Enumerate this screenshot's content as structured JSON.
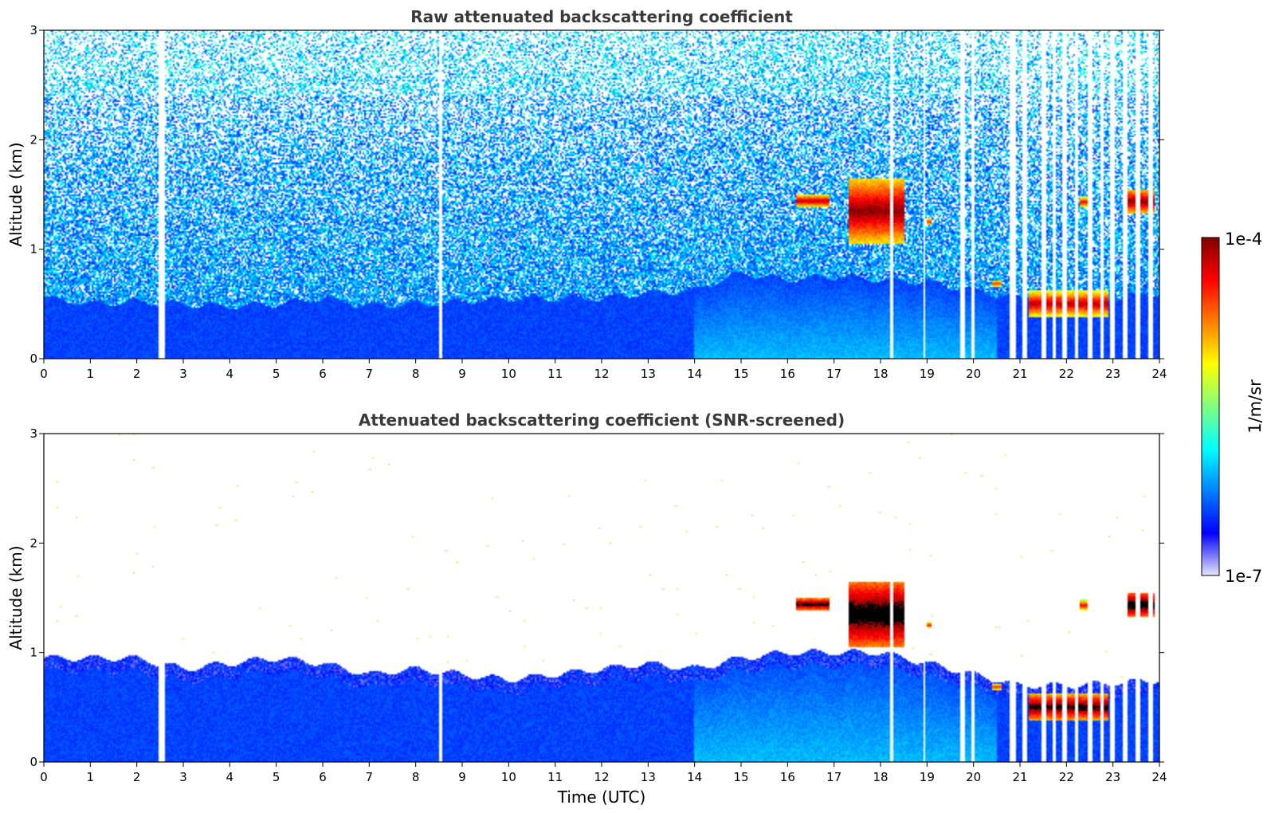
{
  "chart_data": [
    {
      "type": "heatmap",
      "title": "Raw attenuated backscattering coefficient",
      "xlabel": "",
      "ylabel": "Altitude (km)",
      "xlim": [
        0,
        24
      ],
      "ylim": [
        0,
        3
      ],
      "x_ticks": [
        "0",
        "1",
        "2",
        "3",
        "4",
        "5",
        "6",
        "7",
        "8",
        "9",
        "10",
        "11",
        "12",
        "13",
        "14",
        "15",
        "16",
        "17",
        "18",
        "19",
        "20",
        "21",
        "22",
        "23",
        "24"
      ],
      "y_ticks": [
        "0",
        "1",
        "2",
        "3"
      ],
      "grid": false,
      "screened": false,
      "boundary_layer_top_km": [
        [
          0,
          0.55
        ],
        [
          1,
          0.5
        ],
        [
          2,
          0.52
        ],
        [
          3,
          0.5
        ],
        [
          4,
          0.48
        ],
        [
          5,
          0.5
        ],
        [
          6,
          0.55
        ],
        [
          7,
          0.48
        ],
        [
          8,
          0.5
        ],
        [
          9,
          0.52
        ],
        [
          10,
          0.55
        ],
        [
          11,
          0.55
        ],
        [
          12,
          0.55
        ],
        [
          13,
          0.6
        ],
        [
          14,
          0.62
        ],
        [
          15,
          0.78
        ],
        [
          16,
          0.72
        ],
        [
          17,
          0.75
        ],
        [
          18,
          0.72
        ],
        [
          19,
          0.7
        ],
        [
          20,
          0.62
        ],
        [
          21,
          0.55
        ],
        [
          22,
          0.45
        ],
        [
          23,
          0.55
        ],
        [
          24,
          0.6
        ]
      ],
      "cloud_features": [
        {
          "t_start": 16.2,
          "t_end": 16.9,
          "alt_low_km": 1.38,
          "alt_high_km": 1.5,
          "level": 0.95
        },
        {
          "t_start": 17.3,
          "t_end": 18.5,
          "alt_low_km": 1.05,
          "alt_high_km": 1.65,
          "level": 1.0
        },
        {
          "t_start": 19.0,
          "t_end": 19.1,
          "alt_low_km": 1.22,
          "alt_high_km": 1.28,
          "level": 0.9
        },
        {
          "t_start": 20.4,
          "t_end": 20.6,
          "alt_low_km": 0.65,
          "alt_high_km": 0.72,
          "level": 0.85
        },
        {
          "t_start": 21.2,
          "t_end": 22.9,
          "alt_low_km": 0.38,
          "alt_high_km": 0.62,
          "level": 0.95
        },
        {
          "t_start": 22.3,
          "t_end": 22.5,
          "alt_low_km": 1.38,
          "alt_high_km": 1.48,
          "level": 0.9
        },
        {
          "t_start": 23.2,
          "t_end": 23.9,
          "alt_low_km": 1.32,
          "alt_high_km": 1.55,
          "level": 1.0
        }
      ],
      "missing_time_ranges": [
        [
          2.48,
          2.6
        ],
        [
          8.52,
          8.56
        ],
        [
          18.22,
          18.29
        ],
        [
          18.93,
          18.97
        ],
        [
          19.72,
          19.8
        ],
        [
          19.95,
          20.02
        ],
        [
          20.78,
          20.9
        ],
        [
          21.05,
          21.15
        ],
        [
          21.48,
          21.55
        ],
        [
          21.7,
          21.78
        ],
        [
          21.9,
          22.0
        ],
        [
          22.17,
          22.25
        ],
        [
          22.45,
          22.55
        ],
        [
          22.72,
          22.8
        ],
        [
          22.95,
          23.05
        ],
        [
          23.2,
          23.3
        ],
        [
          23.5,
          23.6
        ],
        [
          23.75,
          23.85
        ]
      ]
    },
    {
      "type": "heatmap",
      "title": "Attenuated backscattering coefficient (SNR-screened)",
      "xlabel": "Time (UTC)",
      "ylabel": "Altitude (km)",
      "xlim": [
        0,
        24
      ],
      "ylim": [
        0,
        3
      ],
      "x_ticks": [
        "0",
        "1",
        "2",
        "3",
        "4",
        "5",
        "6",
        "7",
        "8",
        "9",
        "10",
        "11",
        "12",
        "13",
        "14",
        "15",
        "16",
        "17",
        "18",
        "19",
        "20",
        "21",
        "22",
        "23",
        "24"
      ],
      "y_ticks": [
        "0",
        "1",
        "2",
        "3"
      ],
      "grid": false,
      "screened": true,
      "boundary_layer_top_km": [
        [
          0,
          0.95
        ],
        [
          1,
          0.95
        ],
        [
          2,
          0.95
        ],
        [
          3,
          0.85
        ],
        [
          4,
          0.9
        ],
        [
          5,
          0.95
        ],
        [
          6,
          0.9
        ],
        [
          7,
          0.8
        ],
        [
          8,
          0.85
        ],
        [
          9,
          0.8
        ],
        [
          10,
          0.75
        ],
        [
          11,
          0.8
        ],
        [
          12,
          0.85
        ],
        [
          13,
          0.9
        ],
        [
          14,
          0.85
        ],
        [
          15,
          0.95
        ],
        [
          16,
          1.0
        ],
        [
          17,
          1.0
        ],
        [
          18,
          1.0
        ],
        [
          19,
          0.9
        ],
        [
          20,
          0.8
        ],
        [
          21,
          0.7
        ],
        [
          22,
          0.7
        ],
        [
          23,
          0.72
        ],
        [
          24,
          0.75
        ]
      ],
      "cloud_features": [
        {
          "t_start": 16.2,
          "t_end": 16.9,
          "alt_low_km": 1.38,
          "alt_high_km": 1.5,
          "level": 1.05
        },
        {
          "t_start": 17.3,
          "t_end": 18.5,
          "alt_low_km": 1.05,
          "alt_high_km": 1.65,
          "level": 1.1
        },
        {
          "t_start": 19.0,
          "t_end": 19.1,
          "alt_low_km": 1.22,
          "alt_high_km": 1.28,
          "level": 0.9
        },
        {
          "t_start": 20.4,
          "t_end": 20.6,
          "alt_low_km": 0.65,
          "alt_high_km": 0.72,
          "level": 0.85
        },
        {
          "t_start": 21.2,
          "t_end": 22.9,
          "alt_low_km": 0.38,
          "alt_high_km": 0.62,
          "level": 1.05
        },
        {
          "t_start": 22.3,
          "t_end": 22.5,
          "alt_low_km": 1.38,
          "alt_high_km": 1.48,
          "level": 0.9
        },
        {
          "t_start": 23.2,
          "t_end": 23.9,
          "alt_low_km": 1.32,
          "alt_high_km": 1.55,
          "level": 1.1
        }
      ],
      "missing_time_ranges": [
        [
          2.48,
          2.6
        ],
        [
          8.52,
          8.56
        ],
        [
          18.22,
          18.29
        ],
        [
          18.93,
          18.97
        ],
        [
          19.72,
          19.8
        ],
        [
          19.95,
          20.02
        ],
        [
          20.78,
          20.9
        ],
        [
          21.05,
          21.15
        ],
        [
          21.48,
          21.55
        ],
        [
          21.7,
          21.78
        ],
        [
          21.9,
          22.0
        ],
        [
          22.17,
          22.25
        ],
        [
          22.45,
          22.55
        ],
        [
          22.72,
          22.8
        ],
        [
          22.95,
          23.05
        ],
        [
          23.2,
          23.3
        ],
        [
          23.5,
          23.6
        ],
        [
          23.75,
          23.85
        ]
      ]
    }
  ],
  "colorbar": {
    "label": "1/m/sr",
    "max_label": "1e-4",
    "min_label": "1e-7",
    "colormap": "jet",
    "colors": [
      "#e6e6fa",
      "#0000ff",
      "#0080ff",
      "#00ffff",
      "#80ff80",
      "#ffff00",
      "#ff8000",
      "#ff0000",
      "#800000"
    ]
  }
}
